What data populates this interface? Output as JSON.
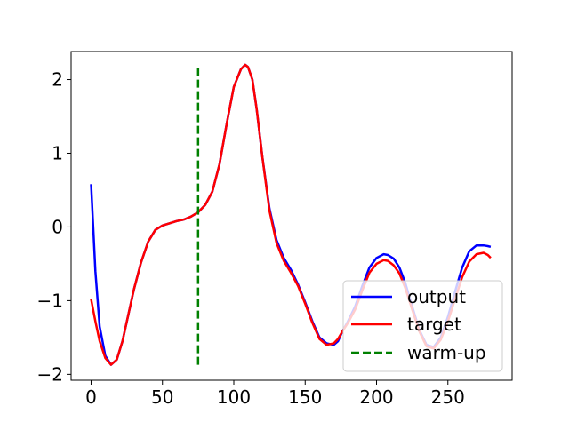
{
  "chart_data": {
    "type": "line",
    "title": "",
    "xlabel": "",
    "ylabel": "",
    "xlim": [
      -14,
      295
    ],
    "ylim": [
      -2.08,
      2.38
    ],
    "xticks": [
      0,
      50,
      100,
      150,
      200,
      250
    ],
    "yticks": [
      -2,
      -1,
      0,
      1,
      2
    ],
    "xtick_labels": [
      "0",
      "50",
      "100",
      "150",
      "200",
      "250"
    ],
    "ytick_labels": [
      "−2",
      "−1",
      "0",
      "1",
      "2"
    ],
    "grid": false,
    "legend_position": "lower-right",
    "series": [
      {
        "name": "output",
        "color": "#0000ff",
        "style": "solid",
        "x": [
          0,
          3,
          6,
          10,
          14,
          18,
          22,
          26,
          30,
          35,
          40,
          45,
          50,
          55,
          60,
          65,
          70,
          75,
          80,
          85,
          90,
          95,
          100,
          105,
          108,
          110,
          113,
          116,
          120,
          125,
          130,
          135,
          140,
          145,
          150,
          155,
          160,
          165,
          170,
          173,
          176,
          180,
          185,
          190,
          195,
          200,
          205,
          208,
          212,
          216,
          220,
          225,
          230,
          235,
          240,
          245,
          250,
          255,
          260,
          265,
          270,
          275,
          278,
          280
        ],
        "y": [
          0.58,
          -0.6,
          -1.35,
          -1.75,
          -1.87,
          -1.8,
          -1.55,
          -1.2,
          -0.85,
          -0.48,
          -0.2,
          -0.04,
          0.02,
          0.05,
          0.08,
          0.1,
          0.14,
          0.2,
          0.3,
          0.48,
          0.85,
          1.4,
          1.9,
          2.14,
          2.2,
          2.17,
          2.0,
          1.6,
          0.95,
          0.25,
          -0.18,
          -0.42,
          -0.58,
          -0.78,
          -1.02,
          -1.28,
          -1.5,
          -1.58,
          -1.6,
          -1.55,
          -1.42,
          -1.28,
          -1.08,
          -0.8,
          -0.55,
          -0.42,
          -0.37,
          -0.38,
          -0.43,
          -0.55,
          -0.75,
          -1.08,
          -1.4,
          -1.6,
          -1.63,
          -1.5,
          -1.22,
          -0.88,
          -0.55,
          -0.33,
          -0.25,
          -0.25,
          -0.26,
          -0.27
        ]
      },
      {
        "name": "target",
        "color": "#ff0000",
        "style": "solid",
        "x": [
          0,
          3,
          6,
          10,
          14,
          18,
          22,
          26,
          30,
          35,
          40,
          45,
          50,
          55,
          60,
          65,
          70,
          75,
          80,
          85,
          90,
          95,
          100,
          105,
          108,
          110,
          113,
          116,
          120,
          125,
          130,
          135,
          140,
          145,
          150,
          155,
          160,
          165,
          170,
          173,
          176,
          180,
          185,
          190,
          195,
          200,
          205,
          208,
          212,
          216,
          220,
          225,
          230,
          235,
          240,
          245,
          250,
          255,
          260,
          265,
          270,
          275,
          278,
          280
        ],
        "y": [
          -0.98,
          -1.28,
          -1.55,
          -1.78,
          -1.87,
          -1.8,
          -1.55,
          -1.2,
          -0.85,
          -0.48,
          -0.2,
          -0.04,
          0.02,
          0.05,
          0.08,
          0.1,
          0.14,
          0.2,
          0.3,
          0.48,
          0.85,
          1.4,
          1.9,
          2.14,
          2.2,
          2.17,
          2.0,
          1.6,
          0.95,
          0.22,
          -0.22,
          -0.46,
          -0.62,
          -0.8,
          -1.04,
          -1.3,
          -1.52,
          -1.6,
          -1.58,
          -1.52,
          -1.42,
          -1.3,
          -1.12,
          -0.86,
          -0.62,
          -0.5,
          -0.45,
          -0.46,
          -0.52,
          -0.63,
          -0.82,
          -1.12,
          -1.42,
          -1.62,
          -1.65,
          -1.53,
          -1.28,
          -0.98,
          -0.68,
          -0.47,
          -0.37,
          -0.35,
          -0.38,
          -0.42
        ]
      }
    ],
    "vline": {
      "name": "warm-up",
      "color": "#008000",
      "style": "dashed",
      "x": 75,
      "y_range": [
        -1.87,
        2.2
      ]
    }
  }
}
